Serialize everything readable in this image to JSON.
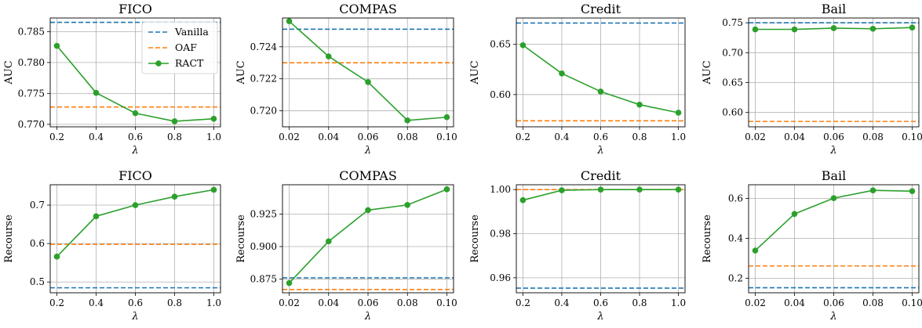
{
  "chart_data": [
    {
      "type": "line",
      "title": "FICO",
      "xlabel": "λ",
      "ylabel": "AUC",
      "x": [
        0.2,
        0.4,
        0.6,
        0.8,
        1.0
      ],
      "xticks": [
        "0.2",
        "0.4",
        "0.6",
        "0.8",
        "1.0"
      ],
      "xlim": [
        0.166,
        1.034
      ],
      "yticks": [
        "0.770",
        "0.775",
        "0.780",
        "0.785"
      ],
      "ytick_values": [
        0.77,
        0.775,
        0.78,
        0.785
      ],
      "ylim": [
        0.7696,
        0.7872
      ],
      "grid": true,
      "legend": "top-right",
      "series": [
        {
          "name": "Vanilla",
          "style": "dashed",
          "color": "#1f77b4",
          "values": [
            0.7865,
            0.7865,
            0.7865,
            0.7865,
            0.7865
          ]
        },
        {
          "name": "OAF",
          "style": "dashed",
          "color": "#ff7f0e",
          "values": [
            0.7728,
            0.7728,
            0.7728,
            0.7728,
            0.7728
          ]
        },
        {
          "name": "RACT",
          "style": "solid-marker",
          "color": "#2ca02c",
          "values": [
            0.7827,
            0.7751,
            0.7718,
            0.7705,
            0.7709
          ]
        }
      ]
    },
    {
      "type": "line",
      "title": "COMPAS",
      "xlabel": "λ",
      "ylabel": "AUC",
      "x": [
        0.02,
        0.04,
        0.06,
        0.08,
        0.1
      ],
      "xticks": [
        "0.02",
        "0.04",
        "0.06",
        "0.08",
        "0.10"
      ],
      "xlim": [
        0.0166,
        0.1034
      ],
      "yticks": [
        "0.720",
        "0.722",
        "0.724"
      ],
      "ytick_values": [
        0.72,
        0.722,
        0.724
      ],
      "ylim": [
        0.719,
        0.7258
      ],
      "grid": true,
      "series": [
        {
          "name": "Vanilla",
          "style": "dashed",
          "color": "#1f77b4",
          "values": [
            0.7251,
            0.7251,
            0.7251,
            0.7251,
            0.7251
          ]
        },
        {
          "name": "OAF",
          "style": "dashed",
          "color": "#ff7f0e",
          "values": [
            0.723,
            0.723,
            0.723,
            0.723,
            0.723
          ]
        },
        {
          "name": "RACT",
          "style": "solid-marker",
          "color": "#2ca02c",
          "values": [
            0.7256,
            0.7234,
            0.7218,
            0.7194,
            0.7196
          ]
        }
      ]
    },
    {
      "type": "line",
      "title": "Credit",
      "xlabel": "λ",
      "ylabel": "AUC",
      "x": [
        0.2,
        0.4,
        0.6,
        0.8,
        1.0
      ],
      "xticks": [
        "0.2",
        "0.4",
        "0.6",
        "0.8",
        "1.0"
      ],
      "xlim": [
        0.166,
        1.034
      ],
      "yticks": [
        "0.60",
        "0.65"
      ],
      "ytick_values": [
        0.6,
        0.65
      ],
      "ylim": [
        0.568,
        0.676
      ],
      "grid": true,
      "series": [
        {
          "name": "Vanilla",
          "style": "dashed",
          "color": "#1f77b4",
          "values": [
            0.671,
            0.671,
            0.671,
            0.671,
            0.671
          ]
        },
        {
          "name": "OAF",
          "style": "dashed",
          "color": "#ff7f0e",
          "values": [
            0.574,
            0.574,
            0.574,
            0.574,
            0.574
          ]
        },
        {
          "name": "RACT",
          "style": "solid-marker",
          "color": "#2ca02c",
          "values": [
            0.649,
            0.621,
            0.603,
            0.59,
            0.582
          ]
        }
      ]
    },
    {
      "type": "line",
      "title": "Bail",
      "xlabel": "λ",
      "ylabel": "AUC",
      "x": [
        0.02,
        0.04,
        0.06,
        0.08,
        0.1
      ],
      "xticks": [
        "0.02",
        "0.04",
        "0.06",
        "0.08",
        "0.10"
      ],
      "xlim": [
        0.0166,
        0.1034
      ],
      "yticks": [
        "0.60",
        "0.65",
        "0.70",
        "0.75"
      ],
      "ytick_values": [
        0.6,
        0.65,
        0.7,
        0.75
      ],
      "ylim": [
        0.576,
        0.758
      ],
      "grid": true,
      "series": [
        {
          "name": "Vanilla",
          "style": "dashed",
          "color": "#1f77b4",
          "values": [
            0.75,
            0.75,
            0.75,
            0.75,
            0.75
          ]
        },
        {
          "name": "OAF",
          "style": "dashed",
          "color": "#ff7f0e",
          "values": [
            0.585,
            0.585,
            0.585,
            0.585,
            0.585
          ]
        },
        {
          "name": "RACT",
          "style": "solid-marker",
          "color": "#2ca02c",
          "values": [
            0.739,
            0.739,
            0.741,
            0.74,
            0.742
          ]
        }
      ]
    },
    {
      "type": "line",
      "title": "FICO",
      "xlabel": "λ",
      "ylabel": "Recourse",
      "x": [
        0.2,
        0.4,
        0.6,
        0.8,
        1.0
      ],
      "xticks": [
        "0.2",
        "0.4",
        "0.6",
        "0.8",
        "1.0"
      ],
      "xlim": [
        0.166,
        1.034
      ],
      "yticks": [
        "0.5",
        "0.6",
        "0.7"
      ],
      "ytick_values": [
        0.5,
        0.6,
        0.7
      ],
      "ylim": [
        0.472,
        0.753
      ],
      "grid": true,
      "series": [
        {
          "name": "Vanilla",
          "style": "dashed",
          "color": "#1f77b4",
          "values": [
            0.485,
            0.485,
            0.485,
            0.485,
            0.485
          ]
        },
        {
          "name": "OAF",
          "style": "dashed",
          "color": "#ff7f0e",
          "values": [
            0.598,
            0.598,
            0.598,
            0.598,
            0.598
          ]
        },
        {
          "name": "RACT",
          "style": "solid-marker",
          "color": "#2ca02c",
          "values": [
            0.566,
            0.671,
            0.7,
            0.722,
            0.74
          ]
        }
      ]
    },
    {
      "type": "line",
      "title": "COMPAS",
      "xlabel": "λ",
      "ylabel": "Recourse",
      "x": [
        0.02,
        0.04,
        0.06,
        0.08,
        0.1
      ],
      "xticks": [
        "0.02",
        "0.04",
        "0.06",
        "0.08",
        "0.10"
      ],
      "xlim": [
        0.0166,
        0.1034
      ],
      "yticks": [
        "0.875",
        "0.900",
        "0.925"
      ],
      "ytick_values": [
        0.875,
        0.9,
        0.925
      ],
      "ylim": [
        0.8645,
        0.9475
      ],
      "grid": true,
      "series": [
        {
          "name": "Vanilla",
          "style": "dashed",
          "color": "#1f77b4",
          "values": [
            0.876,
            0.876,
            0.876,
            0.876,
            0.876
          ]
        },
        {
          "name": "OAF",
          "style": "dashed",
          "color": "#ff7f0e",
          "values": [
            0.867,
            0.867,
            0.867,
            0.867,
            0.867
          ]
        },
        {
          "name": "RACT",
          "style": "solid-marker",
          "color": "#2ca02c",
          "values": [
            0.872,
            0.904,
            0.928,
            0.932,
            0.944
          ]
        }
      ]
    },
    {
      "type": "line",
      "title": "Credit",
      "xlabel": "λ",
      "ylabel": "Recourse",
      "x": [
        0.2,
        0.4,
        0.6,
        0.8,
        1.0
      ],
      "xticks": [
        "0.2",
        "0.4",
        "0.6",
        "0.8",
        "1.0"
      ],
      "xlim": [
        0.166,
        1.034
      ],
      "yticks": [
        "0.96",
        "0.98",
        "1.00"
      ],
      "ytick_values": [
        0.96,
        0.98,
        1.0
      ],
      "ylim": [
        0.9532,
        1.0022
      ],
      "grid": true,
      "series": [
        {
          "name": "Vanilla",
          "style": "dashed",
          "color": "#1f77b4",
          "values": [
            0.9553,
            0.9553,
            0.9553,
            0.9553,
            0.9553
          ]
        },
        {
          "name": "OAF",
          "style": "dashed",
          "color": "#ff7f0e",
          "values": [
            1.0,
            1.0,
            1.0,
            1.0,
            1.0
          ]
        },
        {
          "name": "RACT",
          "style": "solid-marker",
          "color": "#2ca02c",
          "values": [
            0.9952,
            0.9997,
            1.0,
            1.0,
            1.0
          ]
        }
      ]
    },
    {
      "type": "line",
      "title": "Bail",
      "xlabel": "λ",
      "ylabel": "Recourse",
      "x": [
        0.02,
        0.04,
        0.06,
        0.08,
        0.1
      ],
      "xticks": [
        "0.02",
        "0.04",
        "0.06",
        "0.08",
        "0.10"
      ],
      "xlim": [
        0.0166,
        0.1034
      ],
      "yticks": [
        "0.2",
        "0.4",
        "0.6"
      ],
      "ytick_values": [
        0.2,
        0.4,
        0.6
      ],
      "ylim": [
        0.128,
        0.668
      ],
      "grid": true,
      "series": [
        {
          "name": "Vanilla",
          "style": "dashed",
          "color": "#1f77b4",
          "values": [
            0.153,
            0.153,
            0.153,
            0.153,
            0.153
          ]
        },
        {
          "name": "OAF",
          "style": "dashed",
          "color": "#ff7f0e",
          "values": [
            0.262,
            0.262,
            0.262,
            0.262,
            0.262
          ]
        },
        {
          "name": "RACT",
          "style": "solid-marker",
          "color": "#2ca02c",
          "values": [
            0.339,
            0.522,
            0.601,
            0.64,
            0.636
          ]
        }
      ]
    }
  ]
}
